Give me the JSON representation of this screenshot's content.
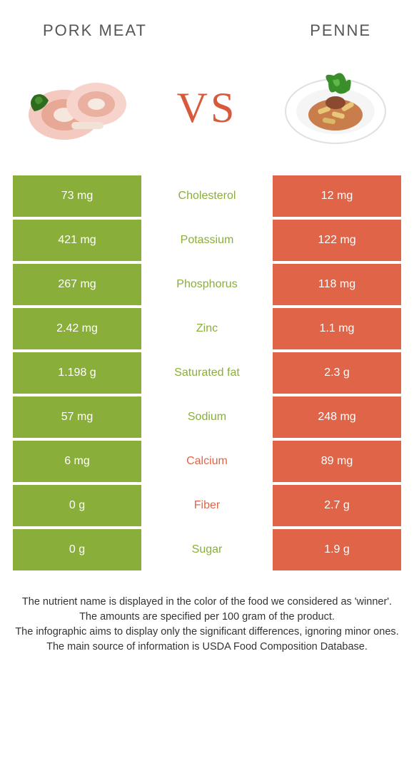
{
  "colors": {
    "left": "#8aae3a",
    "right": "#e06548",
    "text_dark": "#333333"
  },
  "header": {
    "left_title": "Pork meat",
    "right_title": "Penne",
    "vs": "VS"
  },
  "rows": [
    {
      "left": "73 mg",
      "label": "Cholesterol",
      "right": "12 mg",
      "winner": "left"
    },
    {
      "left": "421 mg",
      "label": "Potassium",
      "right": "122 mg",
      "winner": "left"
    },
    {
      "left": "267 mg",
      "label": "Phosphorus",
      "right": "118 mg",
      "winner": "left"
    },
    {
      "left": "2.42 mg",
      "label": "Zinc",
      "right": "1.1 mg",
      "winner": "left"
    },
    {
      "left": "1.198 g",
      "label": "Saturated fat",
      "right": "2.3 g",
      "winner": "left"
    },
    {
      "left": "57 mg",
      "label": "Sodium",
      "right": "248 mg",
      "winner": "left"
    },
    {
      "left": "6 mg",
      "label": "Calcium",
      "right": "89 mg",
      "winner": "right"
    },
    {
      "left": "0 g",
      "label": "Fiber",
      "right": "2.7 g",
      "winner": "right"
    },
    {
      "left": "0 g",
      "label": "Sugar",
      "right": "1.9 g",
      "winner": "left"
    }
  ],
  "footer": {
    "line1": "The nutrient name is displayed in the color of the food we considered as 'winner'.",
    "line2": "The amounts are specified per 100 gram of the product.",
    "line3": "The infographic aims to display only the significant differences, ignoring minor ones.",
    "line4": "The main source of information is USDA Food Composition Database."
  }
}
